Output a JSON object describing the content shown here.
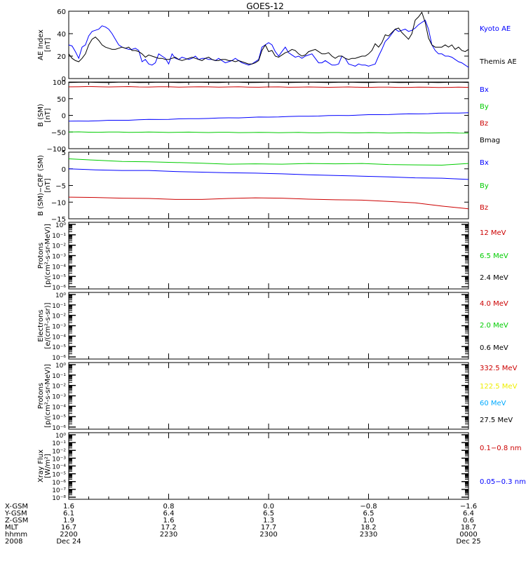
{
  "title": "GOES-12",
  "colors": {
    "black": "#000000",
    "blue": "#0000ff",
    "green": "#00cc00",
    "red": "#cc0000",
    "yellow": "#eeee00",
    "cyan": "#00aaff"
  },
  "chart_data": [
    {
      "type": "line",
      "ylabel": "AE Index [nT]",
      "ylim": [
        0,
        60
      ],
      "yticks": [
        "0",
        "20",
        "40",
        "60"
      ],
      "x": [
        0,
        1,
        2,
        3,
        4,
        5,
        6,
        7,
        8,
        9,
        10,
        11,
        12,
        13,
        14,
        15,
        16,
        17,
        18,
        19,
        20,
        21,
        22,
        23,
        24,
        25,
        26,
        27,
        28,
        29,
        30,
        31,
        32,
        33,
        34,
        35,
        36,
        37,
        38,
        39,
        40,
        41,
        42,
        43,
        44,
        45,
        46,
        47,
        48,
        49,
        50,
        51,
        52,
        53,
        54,
        55,
        56,
        57,
        58,
        59,
        60,
        61,
        62,
        63,
        64,
        65,
        66,
        67,
        68,
        69,
        70,
        71,
        72,
        73,
        74,
        75,
        76,
        77,
        78,
        79,
        80,
        81,
        82,
        83,
        84,
        85,
        86,
        87,
        88,
        89,
        90,
        91,
        92,
        93,
        94,
        95,
        96,
        97,
        98,
        99,
        100,
        101,
        102,
        103,
        104,
        105,
        106,
        107,
        108,
        109,
        110,
        111,
        112,
        113,
        114,
        115,
        116,
        117,
        118,
        119,
        120
      ],
      "series": [
        {
          "name": "Kyoto AE",
          "color": "blue",
          "values": [
            30,
            29,
            24,
            18,
            28,
            30,
            38,
            42,
            43,
            44,
            47,
            46,
            44,
            40,
            35,
            30,
            28,
            27,
            26,
            26,
            27,
            25,
            15,
            17,
            13,
            12,
            14,
            22,
            20,
            18,
            13,
            22,
            18,
            17,
            19,
            18,
            17,
            18,
            20,
            17,
            18,
            18,
            17,
            17,
            16,
            18,
            16,
            14,
            15,
            16,
            18,
            16,
            14,
            13,
            12,
            13,
            15,
            17,
            28,
            30,
            32,
            30,
            24,
            20,
            24,
            28,
            23,
            21,
            19,
            20,
            18,
            20,
            21,
            22,
            18,
            14,
            14,
            16,
            14,
            12,
            12,
            13,
            20,
            18,
            13,
            12,
            11,
            13,
            12,
            12,
            11,
            12,
            13,
            20,
            26,
            33,
            36,
            40,
            44,
            42,
            43,
            44,
            42,
            43,
            45,
            48,
            50,
            52,
            44,
            30,
            25,
            22,
            22,
            20,
            20,
            19,
            17,
            15,
            14,
            12,
            10
          ]
        },
        {
          "name": "Themis AE",
          "color": "black",
          "values": [
            22,
            18,
            16,
            15,
            18,
            22,
            30,
            35,
            37,
            34,
            30,
            28,
            27,
            26,
            26,
            27,
            28,
            27,
            28,
            25,
            25,
            24,
            22,
            19,
            21,
            20,
            19,
            18,
            18,
            17,
            17,
            18,
            19,
            17,
            16,
            17,
            18,
            19,
            18,
            17,
            16,
            18,
            19,
            17,
            16,
            16,
            17,
            17,
            16,
            16,
            15,
            16,
            15,
            14,
            13,
            13,
            14,
            16,
            25,
            30,
            24,
            25,
            20,
            19,
            21,
            23,
            24,
            26,
            25,
            22,
            20,
            21,
            24,
            25,
            26,
            24,
            22,
            22,
            23,
            20,
            18,
            20,
            20,
            18,
            17,
            18,
            18,
            19,
            20,
            20,
            22,
            25,
            31,
            28,
            32,
            39,
            38,
            41,
            44,
            45,
            41,
            38,
            35,
            40,
            52,
            55,
            59,
            50,
            36,
            30,
            28,
            28,
            28,
            30,
            28,
            30,
            26,
            28,
            25,
            24,
            26
          ]
        }
      ],
      "legend": [
        "Kyoto AE",
        "Themis AE"
      ]
    },
    {
      "type": "line",
      "ylabel": "B (SM) [nT]",
      "ylim": [
        -100,
        100
      ],
      "yticks": [
        "−100",
        "−50",
        "0",
        "50",
        "100"
      ],
      "series": [
        {
          "name": "Bx",
          "color": "blue",
          "start": -18,
          "end": 8
        },
        {
          "name": "By",
          "color": "green",
          "start": -50,
          "end": -53
        },
        {
          "name": "Bz",
          "color": "red",
          "start": 86,
          "end": 84
        },
        {
          "name": "Bmag",
          "color": "black",
          "start": 99,
          "end": 99
        }
      ],
      "legend": [
        "Bx",
        "By",
        "Bz",
        "Bmag"
      ]
    },
    {
      "type": "line",
      "ylabel": "B (SM)−CRF (SM) [nT]",
      "ylim": [
        -15,
        5
      ],
      "yticks": [
        "−15",
        "−10",
        "−5",
        "0",
        "5"
      ],
      "series": [
        {
          "name": "Bx",
          "color": "blue",
          "values": [
            0,
            -0.3,
            -0.5,
            -0.5,
            -0.8,
            -1,
            -1.2,
            -1.3,
            -1.5,
            -1.8,
            -2,
            -2.2,
            -2.4,
            -2.7,
            -2.8,
            -3.2
          ]
        },
        {
          "name": "By",
          "color": "green",
          "values": [
            3,
            2.6,
            2.2,
            2.1,
            1.9,
            1.7,
            1.4,
            1.5,
            1.4,
            1.6,
            1.5,
            1.6,
            1.3,
            1.2,
            1.1,
            1.6
          ]
        },
        {
          "name": "Bz",
          "color": "red",
          "values": [
            -8.5,
            -8.6,
            -8.8,
            -8.9,
            -9.2,
            -9.2,
            -8.9,
            -8.7,
            -8.8,
            -9.1,
            -9.3,
            -9.4,
            -9.8,
            -10.2,
            -11.2,
            -12
          ]
        }
      ],
      "legend": [
        "Bx",
        "By",
        "Bz"
      ]
    },
    {
      "type": "line",
      "ylabel": "Protons [p/(cm²-s-sr-MeV)]",
      "yticks": [
        "10⁰",
        "10⁻¹",
        "10⁻²",
        "10⁻³",
        "10⁻⁴",
        "10⁻⁵",
        "10⁻⁶"
      ],
      "legend": [
        {
          "label": "12 MeV",
          "color": "red"
        },
        {
          "label": "6.5 MeV",
          "color": "green"
        },
        {
          "label": "2.4 MeV",
          "color": "black"
        }
      ]
    },
    {
      "type": "line",
      "ylabel": "Electrons [e/(cm²-s-sr)]",
      "yticks": [
        "10⁰",
        "10⁻¹",
        "10⁻²",
        "10⁻³",
        "10⁻⁴",
        "10⁻⁵",
        "10⁻⁶"
      ],
      "legend": [
        {
          "label": "4.0 MeV",
          "color": "red"
        },
        {
          "label": "2.0 MeV",
          "color": "green"
        },
        {
          "label": "0.6 MeV",
          "color": "black"
        }
      ]
    },
    {
      "type": "line",
      "ylabel": "Protons [p/(cm²-s-sr-MeV)]",
      "yticks": [
        "10⁰",
        "10⁻¹",
        "10⁻²",
        "10⁻³",
        "10⁻⁴",
        "10⁻⁵",
        "10⁻⁶"
      ],
      "legend": [
        {
          "label": "332.5 MeV",
          "color": "red"
        },
        {
          "label": "122.5 MeV",
          "color": "yellow"
        },
        {
          "label": "60 MeV",
          "color": "cyan"
        },
        {
          "label": "27.5 MeV",
          "color": "black"
        }
      ]
    },
    {
      "type": "line",
      "ylabel": "Xray Flux [W/m²]",
      "yticks": [
        "10⁰",
        "10⁻¹",
        "10⁻²",
        "10⁻³",
        "10⁻⁴",
        "10⁻⁵",
        "10⁻⁶",
        "10⁻⁷",
        "10⁻⁸"
      ],
      "legend": [
        {
          "label": "0.1−0.8 nm",
          "color": "red"
        },
        {
          "label": "0.05−0.3 nm",
          "color": "blue"
        }
      ]
    }
  ],
  "xaxis": {
    "row_labels": [
      "X-GSM",
      "Y-GSM",
      "Z-GSM",
      "MLT",
      "hhmm",
      "2008"
    ],
    "columns": [
      [
        "1.6",
        "6.1",
        "1.9",
        "16.7",
        "2200",
        "Dec 24"
      ],
      [
        "0.8",
        "6.4",
        "1.6",
        "17.2",
        "2230",
        ""
      ],
      [
        "0.0",
        "6.5",
        "1.3",
        "17.7",
        "2300",
        ""
      ],
      [
        "−0.8",
        "6.5",
        "1.0",
        "18.2",
        "2330",
        ""
      ],
      [
        "−1.6",
        "6.4",
        "0.6",
        "18.7",
        "0000",
        "Dec 25"
      ]
    ]
  }
}
